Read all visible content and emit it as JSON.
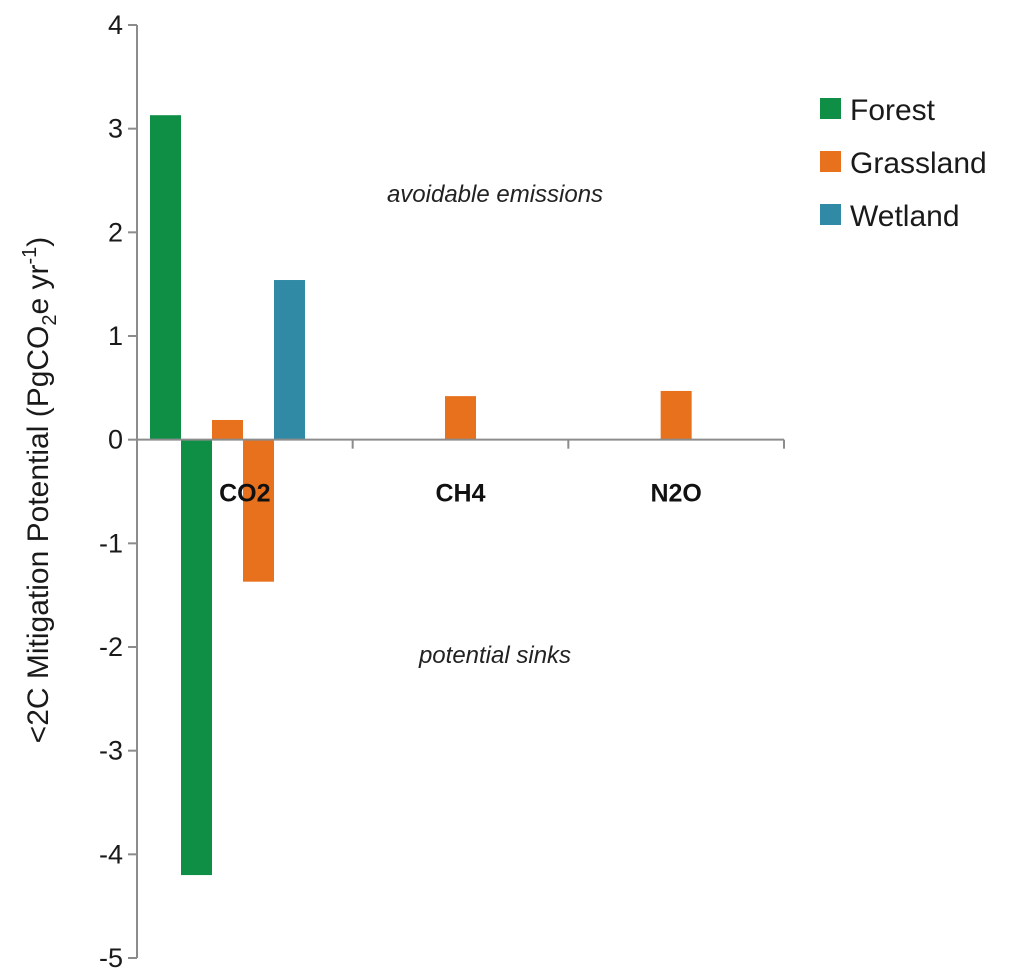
{
  "chart_data": {
    "type": "bar",
    "categories": [
      "CO2",
      "CH4",
      "N2O"
    ],
    "series": [
      {
        "name": "Forest",
        "color": "#0e8f45",
        "values": [
          [
            3.13,
            -4.2
          ],
          [],
          []
        ]
      },
      {
        "name": "Grassland",
        "color": "#e8711d",
        "values": [
          [
            0.19,
            -1.37
          ],
          [
            0.42
          ],
          [
            0.47
          ]
        ]
      },
      {
        "name": "Wetland",
        "color": "#318aa5",
        "values": [
          [
            1.54
          ],
          [],
          []
        ]
      }
    ],
    "ylabel": {
      "prefix": "<2C Mitigation Potential  (PgCO",
      "sub": "2",
      "mid": "e yr",
      "sup": "-1",
      "suffix": ")"
    },
    "ylim": [
      -5,
      4
    ],
    "yticks": [
      "4",
      "3",
      "2",
      "1",
      "0",
      "-1",
      "-2",
      "-3",
      "-4",
      "-5"
    ],
    "annotations": [
      "avoidable  emissions",
      "potential sinks"
    ],
    "legend_position": "top-right",
    "grid": false
  }
}
